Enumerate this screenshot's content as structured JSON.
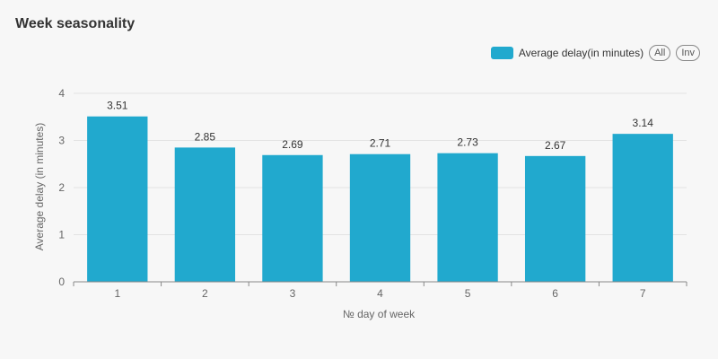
{
  "chart_title": "Week seasonality",
  "legend": {
    "all_label": "All",
    "inv_label": "Inv"
  },
  "colors": {
    "bar": "#21a9ce",
    "grid": "#e3e3e3",
    "axis": "#888888"
  },
  "chart_data": {
    "type": "bar",
    "title": "Week seasonality",
    "categories": [
      "1",
      "2",
      "3",
      "4",
      "5",
      "6",
      "7"
    ],
    "series": [
      {
        "name": "Average delay(in minutes)",
        "values": [
          3.51,
          2.85,
          2.69,
          2.71,
          2.73,
          2.67,
          3.14
        ]
      }
    ],
    "data_labels": [
      "3.51",
      "2.85",
      "2.69",
      "2.71",
      "2.73",
      "2.67",
      "3.14"
    ],
    "xlabel": "№ day of week",
    "ylabel": "Average delay (in minutes)",
    "ylim": [
      0,
      4
    ],
    "yticks": [
      "0",
      "1",
      "2",
      "3",
      "4"
    ],
    "grid": true,
    "legend_position": "top-right"
  }
}
